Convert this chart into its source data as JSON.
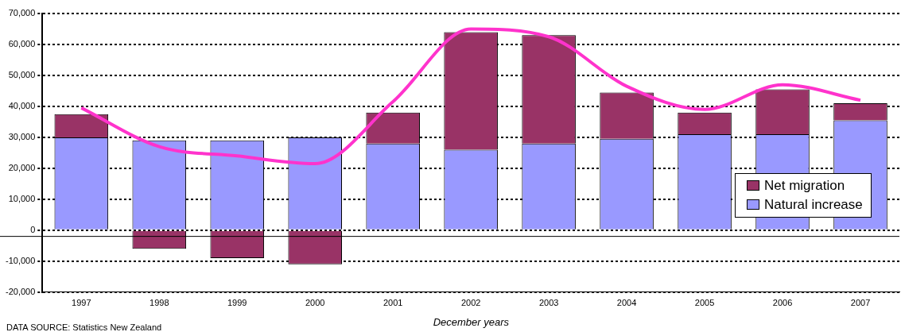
{
  "chart_data": {
    "type": "bar",
    "stacked": true,
    "xlabel": "December years",
    "annotations": [
      "DATA SOURCE:  Statistics New Zealand"
    ],
    "categories": [
      "1997",
      "1998",
      "1999",
      "2000",
      "2001",
      "2002",
      "2003",
      "2004",
      "2005",
      "2006",
      "2007"
    ],
    "series": [
      {
        "name": "Natural increase",
        "color": "#9999ff",
        "values": [
          30000,
          29000,
          29000,
          30000,
          28000,
          26000,
          28000,
          29500,
          31000,
          31000,
          35500
        ]
      },
      {
        "name": "Net migration",
        "color": "#993366",
        "values": [
          7500,
          -6000,
          -9000,
          -11000,
          10000,
          38000,
          35000,
          15000,
          7000,
          14500,
          5500
        ]
      },
      {
        "type": "line",
        "color": "#ff33cc",
        "marker": "none",
        "values": [
          39500,
          27000,
          24000,
          21500,
          41500,
          65000,
          62500,
          46500,
          39000,
          47000,
          42000
        ]
      }
    ],
    "ylim": [
      -20000,
      70000
    ],
    "yticks": [
      {
        "value": -20000,
        "label": "-20,000"
      },
      {
        "value": -10000,
        "label": "-10,000"
      },
      0,
      {
        "value": 10000,
        "label": "10,000"
      },
      {
        "value": 20000,
        "label": "20,000"
      },
      {
        "value": 30000,
        "label": "30,000"
      },
      {
        "value": 40000,
        "label": "40,000"
      },
      {
        "value": 50000,
        "label": "50,000"
      },
      {
        "value": 60000,
        "label": "60,000"
      },
      {
        "value": 70000,
        "label": "70,000"
      }
    ],
    "ref_lines": [
      {
        "axis": "y",
        "value": -2000,
        "color": "#000000",
        "line_style": "solid"
      }
    ],
    "grid": "y",
    "legend": "bottom right"
  }
}
